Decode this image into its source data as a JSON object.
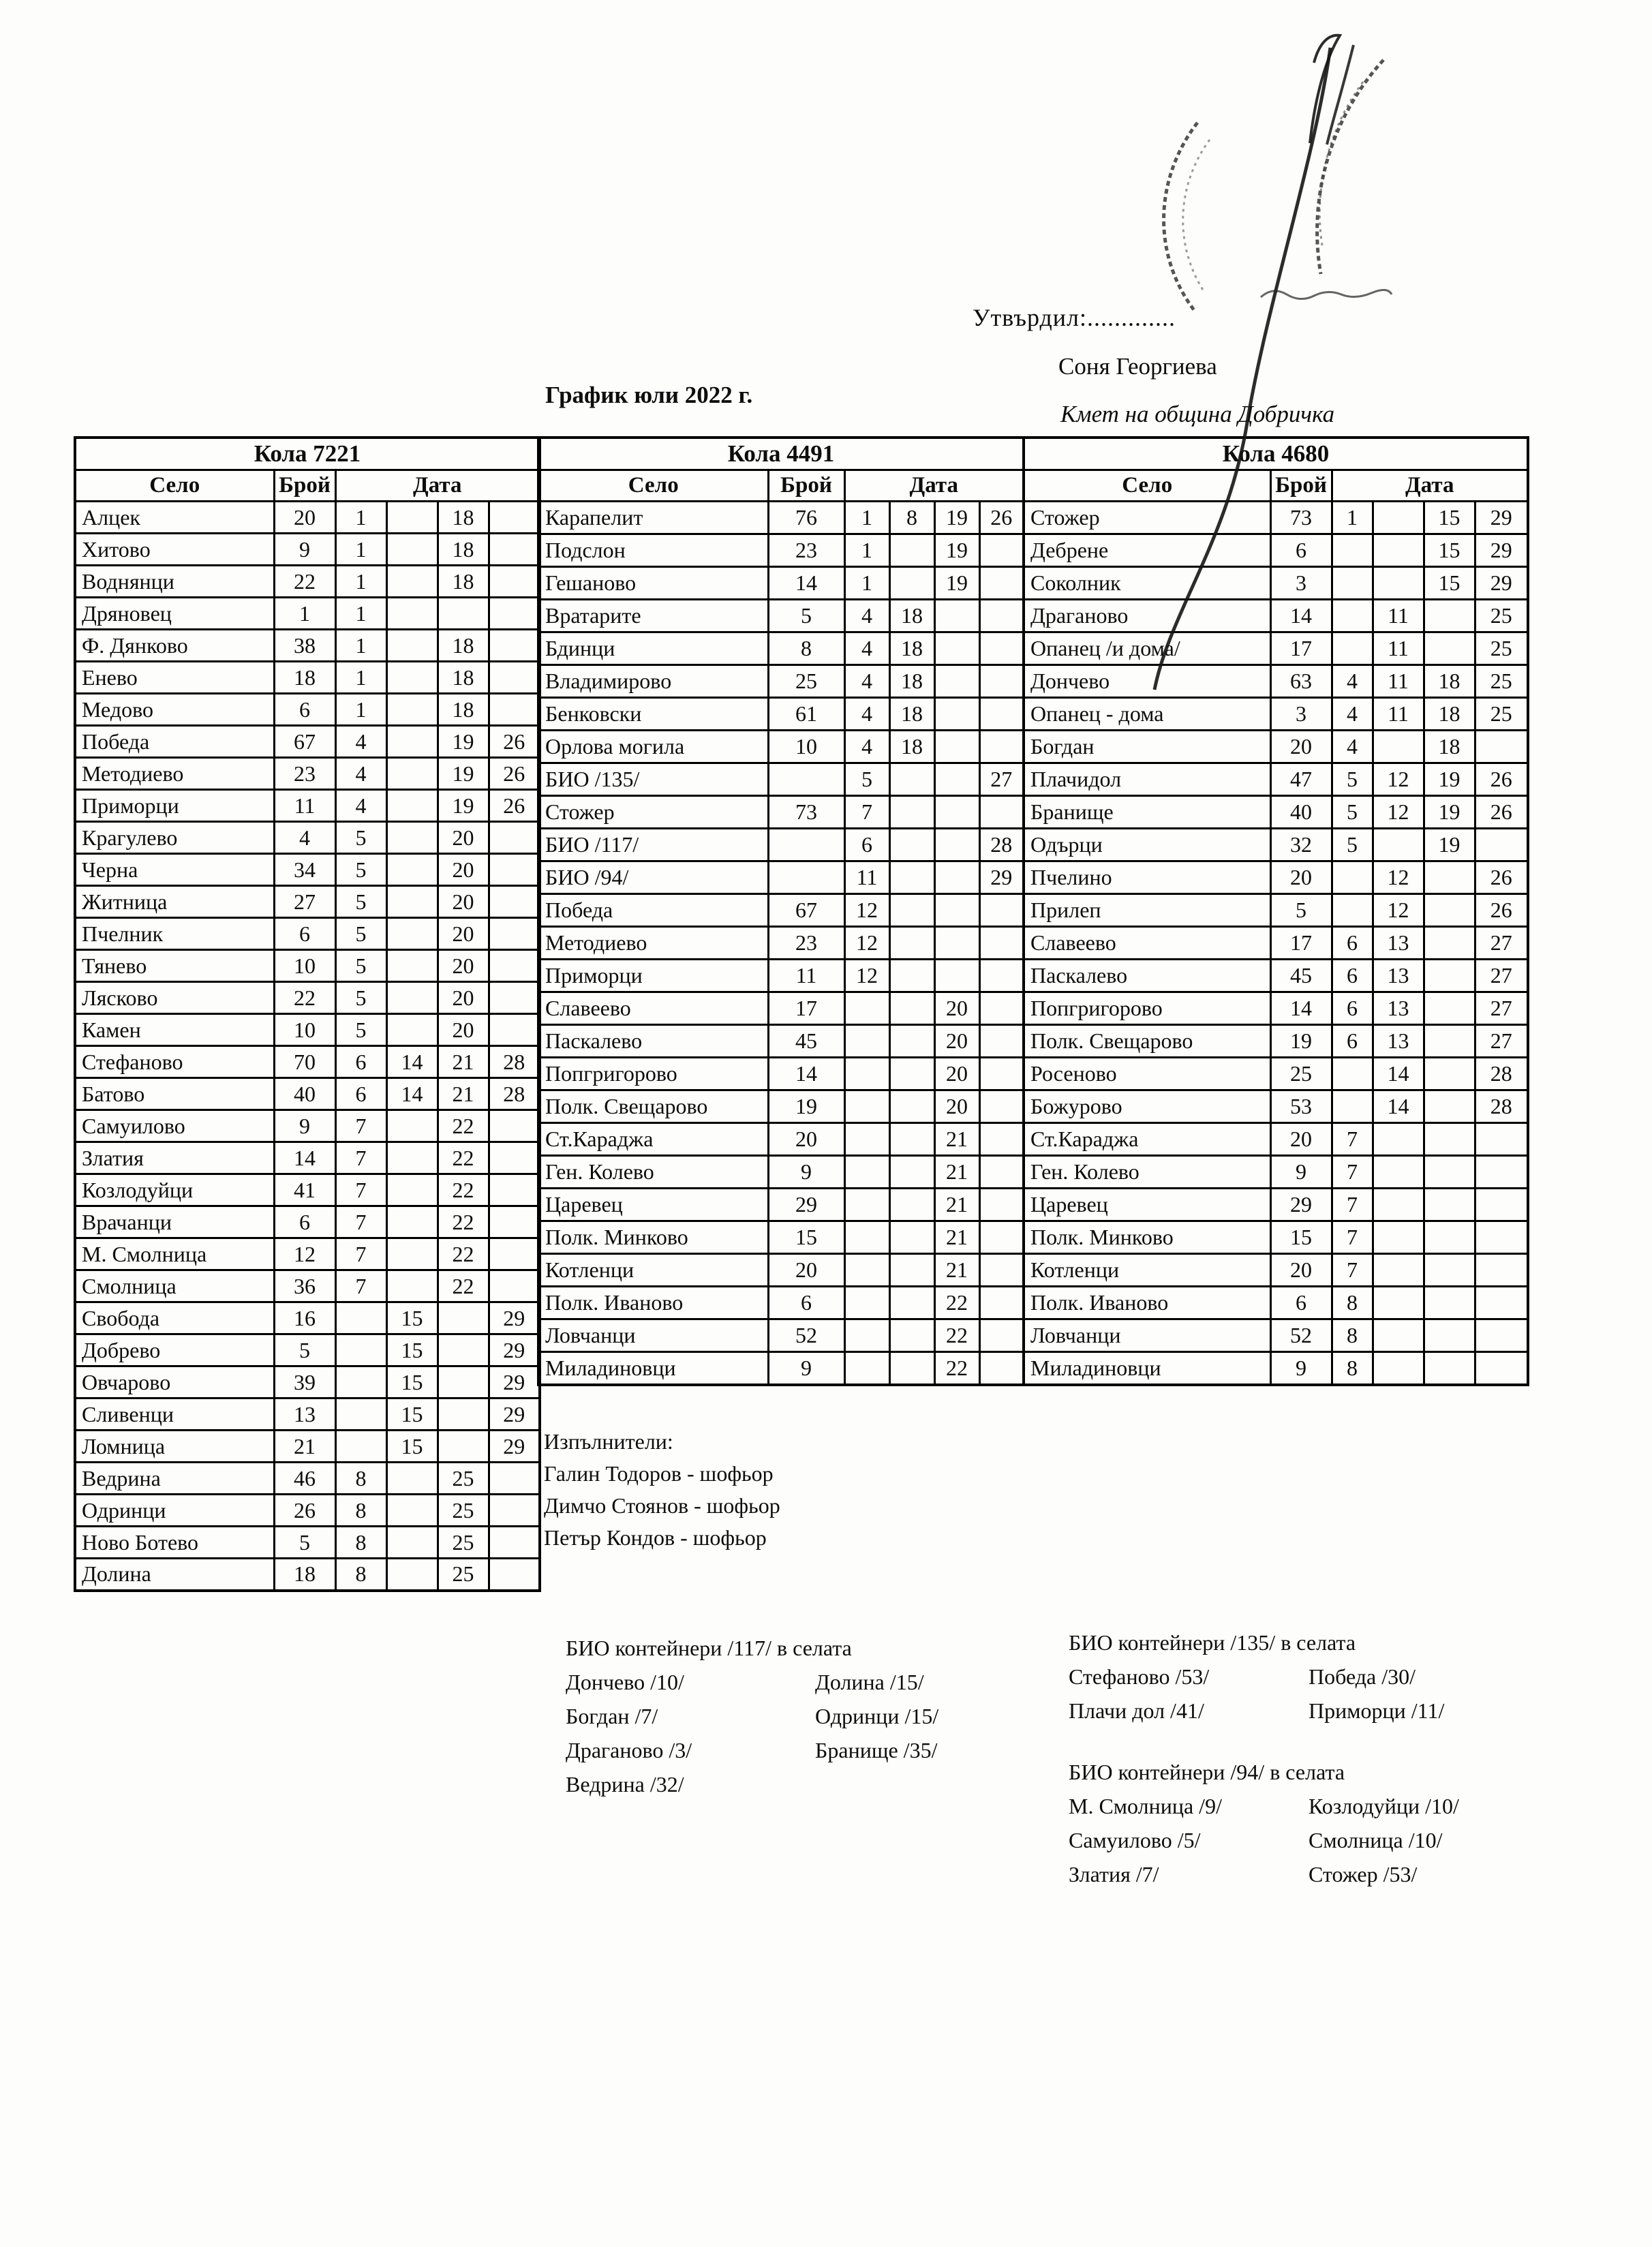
{
  "header": {
    "approved_label": "Утвърдил:.............",
    "approver_name": "Соня Георгиева",
    "approver_role": "Кмет  на община Добричка",
    "doc_title": "График юли 2022 г."
  },
  "columns": {
    "village": "Село",
    "count": "Брой",
    "date": "Дата"
  },
  "tables": [
    {
      "car": "Кола 7221",
      "rows": [
        [
          "Алцек",
          "20",
          "1",
          "",
          "18",
          ""
        ],
        [
          "Хитово",
          "9",
          "1",
          "",
          "18",
          ""
        ],
        [
          "Воднянци",
          "22",
          "1",
          "",
          "18",
          ""
        ],
        [
          "Дряновец",
          "1",
          "1",
          "",
          "",
          ""
        ],
        [
          "Ф. Дянково",
          "38",
          "1",
          "",
          "18",
          ""
        ],
        [
          "Енево",
          "18",
          "1",
          "",
          "18",
          ""
        ],
        [
          "Медово",
          "6",
          "1",
          "",
          "18",
          ""
        ],
        [
          "Победа",
          "67",
          "4",
          "",
          "19",
          "26"
        ],
        [
          "Методиево",
          "23",
          "4",
          "",
          "19",
          "26"
        ],
        [
          "Приморци",
          "11",
          "4",
          "",
          "19",
          "26"
        ],
        [
          "Крагулево",
          "4",
          "5",
          "",
          "20",
          ""
        ],
        [
          "Черна",
          "34",
          "5",
          "",
          "20",
          ""
        ],
        [
          "Житница",
          "27",
          "5",
          "",
          "20",
          ""
        ],
        [
          "Пчелник",
          "6",
          "5",
          "",
          "20",
          ""
        ],
        [
          "Тянево",
          "10",
          "5",
          "",
          "20",
          ""
        ],
        [
          "Лясково",
          "22",
          "5",
          "",
          "20",
          ""
        ],
        [
          "Камен",
          "10",
          "5",
          "",
          "20",
          ""
        ],
        [
          "Стефаново",
          "70",
          "6",
          "14",
          "21",
          "28"
        ],
        [
          "Батово",
          "40",
          "6",
          "14",
          "21",
          "28"
        ],
        [
          "Самуилово",
          "9",
          "7",
          "",
          "22",
          ""
        ],
        [
          "Златия",
          "14",
          "7",
          "",
          "22",
          ""
        ],
        [
          "Козлодуйци",
          "41",
          "7",
          "",
          "22",
          ""
        ],
        [
          "Врачанци",
          "6",
          "7",
          "",
          "22",
          ""
        ],
        [
          "М. Смолница",
          "12",
          "7",
          "",
          "22",
          ""
        ],
        [
          "Смолница",
          "36",
          "7",
          "",
          "22",
          ""
        ],
        [
          "Свобода",
          "16",
          "",
          "15",
          "",
          "29"
        ],
        [
          "Добрево",
          "5",
          "",
          "15",
          "",
          "29"
        ],
        [
          "Овчарово",
          "39",
          "",
          "15",
          "",
          "29"
        ],
        [
          "Сливенци",
          "13",
          "",
          "15",
          "",
          "29"
        ],
        [
          "Ломница",
          "21",
          "",
          "15",
          "",
          "29"
        ],
        [
          "Ведрина",
          "46",
          "8",
          "",
          "25",
          ""
        ],
        [
          "Одринци",
          "26",
          "8",
          "",
          "25",
          ""
        ],
        [
          "Ново Ботево",
          "5",
          "8",
          "",
          "25",
          ""
        ],
        [
          "Долина",
          "18",
          "8",
          "",
          "25",
          ""
        ]
      ]
    },
    {
      "car": "Кола 4491",
      "rows": [
        [
          "Карапелит",
          "76",
          "1",
          "8",
          "19",
          "26"
        ],
        [
          "Подслон",
          "23",
          "1",
          "",
          "19",
          ""
        ],
        [
          "Гешаново",
          "14",
          "1",
          "",
          "19",
          ""
        ],
        [
          "Вратарите",
          "5",
          "4",
          "18",
          "",
          ""
        ],
        [
          "Бдинци",
          "8",
          "4",
          "18",
          "",
          ""
        ],
        [
          "Владимирово",
          "25",
          "4",
          "18",
          "",
          ""
        ],
        [
          "Бенковски",
          "61",
          "4",
          "18",
          "",
          ""
        ],
        [
          "Орлова могила",
          "10",
          "4",
          "18",
          "",
          ""
        ],
        [
          "БИО /135/",
          "",
          "5",
          "",
          "",
          "27"
        ],
        [
          "Стожер",
          "73",
          "7",
          "",
          "",
          ""
        ],
        [
          "БИО /117/",
          "",
          "6",
          "",
          "",
          "28"
        ],
        [
          "БИО /94/",
          "",
          "11",
          "",
          "",
          "29"
        ],
        [
          "Победа",
          "67",
          "12",
          "",
          "",
          ""
        ],
        [
          "Методиево",
          "23",
          "12",
          "",
          "",
          ""
        ],
        [
          "Приморци",
          "11",
          "12",
          "",
          "",
          ""
        ],
        [
          "Славеево",
          "17",
          "",
          "",
          "20",
          ""
        ],
        [
          "Паскалево",
          "45",
          "",
          "",
          "20",
          ""
        ],
        [
          "Попгригорово",
          "14",
          "",
          "",
          "20",
          ""
        ],
        [
          "Полк. Свещарово",
          "19",
          "",
          "",
          "20",
          ""
        ],
        [
          "Ст.Караджа",
          "20",
          "",
          "",
          "21",
          ""
        ],
        [
          "Ген. Колево",
          "9",
          "",
          "",
          "21",
          ""
        ],
        [
          "Царевец",
          "29",
          "",
          "",
          "21",
          ""
        ],
        [
          "Полк. Минково",
          "15",
          "",
          "",
          "21",
          ""
        ],
        [
          "Котленци",
          "20",
          "",
          "",
          "21",
          ""
        ],
        [
          "Полк. Иваново",
          "6",
          "",
          "",
          "22",
          ""
        ],
        [
          "Ловчанци",
          "52",
          "",
          "",
          "22",
          ""
        ],
        [
          "Миладиновци",
          "9",
          "",
          "",
          "22",
          ""
        ]
      ]
    },
    {
      "car": "Кола 4680",
      "rows": [
        [
          "Стожер",
          "73",
          "1",
          "",
          "15",
          "29"
        ],
        [
          "Дебрене",
          "6",
          "",
          "",
          "15",
          "29"
        ],
        [
          "Соколник",
          "3",
          "",
          "",
          "15",
          "29"
        ],
        [
          "Драганово",
          "14",
          "",
          "11",
          "",
          "25"
        ],
        [
          "Опанец /и дома/",
          "17",
          "",
          "11",
          "",
          "25"
        ],
        [
          "Дончево",
          "63",
          "4",
          "11",
          "18",
          "25"
        ],
        [
          "Опанец - дома",
          "3",
          "4",
          "11",
          "18",
          "25"
        ],
        [
          "Богдан",
          "20",
          "4",
          "",
          "18",
          ""
        ],
        [
          "Плачидол",
          "47",
          "5",
          "12",
          "19",
          "26"
        ],
        [
          "Бранище",
          "40",
          "5",
          "12",
          "19",
          "26"
        ],
        [
          "Одърци",
          "32",
          "5",
          "",
          "19",
          ""
        ],
        [
          "Пчелино",
          "20",
          "",
          "12",
          "",
          "26"
        ],
        [
          "Прилеп",
          "5",
          "",
          "12",
          "",
          "26"
        ],
        [
          "Славеево",
          "17",
          "6",
          "13",
          "",
          "27"
        ],
        [
          "Паскалево",
          "45",
          "6",
          "13",
          "",
          "27"
        ],
        [
          "Попгригорово",
          "14",
          "6",
          "13",
          "",
          "27"
        ],
        [
          "Полк. Свещарово",
          "19",
          "6",
          "13",
          "",
          "27"
        ],
        [
          "Росеново",
          "25",
          "",
          "14",
          "",
          "28"
        ],
        [
          "Божурово",
          "53",
          "",
          "14",
          "",
          "28"
        ],
        [
          "Ст.Караджа",
          "20",
          "7",
          "",
          "",
          ""
        ],
        [
          "Ген. Колево",
          "9",
          "7",
          "",
          "",
          ""
        ],
        [
          "Царевец",
          "29",
          "7",
          "",
          "",
          ""
        ],
        [
          "Полк. Минково",
          "15",
          "7",
          "",
          "",
          ""
        ],
        [
          "Котленци",
          "20",
          "7",
          "",
          "",
          ""
        ],
        [
          "Полк. Иваново",
          "6",
          "8",
          "",
          "",
          ""
        ],
        [
          "Ловчанци",
          "52",
          "8",
          "",
          "",
          ""
        ],
        [
          "Миладиновци",
          "9",
          "8",
          "",
          "",
          ""
        ]
      ]
    }
  ],
  "executors": {
    "heading": "Изпълнители:",
    "items": [
      "Галин Тодоров - шофьор",
      "Димчо Стоянов - шофьор",
      "Петър Кондов - шофьор"
    ]
  },
  "bio_sections": [
    {
      "heading": "БИО контейнери /117/ в селата",
      "left": [
        "Дончево /10/",
        "Богдан /7/",
        "Драганово /3/",
        "Ведрина /32/"
      ],
      "right": [
        "Долина /15/",
        "Одринци /15/",
        "Бранище /35/"
      ]
    },
    {
      "heading": "БИО контейнери /135/ в селата",
      "left": [
        "Стефаново /53/",
        "Плачи дол /41/"
      ],
      "right": [
        "Победа /30/",
        "Приморци /11/"
      ]
    },
    {
      "heading": "БИО контейнери /94/ в селата",
      "left": [
        "М. Смолница /9/",
        "Самуилово /5/",
        "Златия /7/"
      ],
      "right": [
        "Козлодуйци /10/",
        "Смолница /10/",
        "Стожер /53/"
      ]
    }
  ]
}
